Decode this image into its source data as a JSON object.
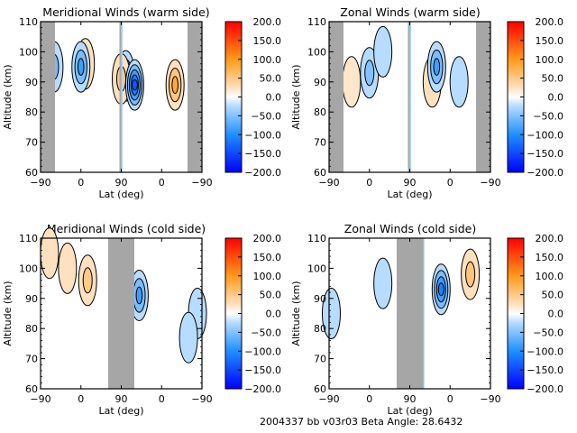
{
  "footer": "2004337 bb v03r03   Beta Angle: 28.6432",
  "chart_data": [
    {
      "type": "heatmap",
      "title": "Meridional Winds (warm side)",
      "xlabel": "Lat (deg)",
      "ylabel": "Altitude (km)",
      "xticks": [
        "-90",
        "0",
        "90",
        "0",
        "-90"
      ],
      "yticks": [
        "60",
        "70",
        "80",
        "90",
        "100",
        "110"
      ],
      "ylim": [
        60,
        110
      ],
      "colorbar": {
        "ticks": [
          "200.0",
          "150.0",
          "100.0",
          "50.0",
          "0.0",
          "-50.0",
          "-100.0",
          "-150.0",
          "-200.0"
        ],
        "range": [
          -200,
          200
        ]
      },
      "masked_lat_ranges": [
        [
          -90,
          -65
        ],
        [
          88,
          90
        ],
        [
          -65,
          -90
        ]
      ],
      "features": [
        {
          "type": "neg",
          "lat": -60,
          "alt": 95,
          "value": -60
        },
        {
          "type": "pos",
          "lat": -30,
          "alt": 89,
          "value": 100
        },
        {
          "type": "pos",
          "lat": 10,
          "alt": 96,
          "value": 30
        },
        {
          "type": "neg",
          "lat": 80,
          "alt": 92,
          "value": -80
        },
        {
          "type": "pos",
          "lat": 90,
          "alt": 91,
          "value": 50
        },
        {
          "type": "neg",
          "lat": 60,
          "alt": 89,
          "value": -140
        },
        {
          "type": "neg",
          "lat": 0,
          "alt": 95,
          "value": -100
        }
      ]
    },
    {
      "type": "heatmap",
      "title": "Zonal Winds (warm side)",
      "xlabel": "Lat (deg)",
      "ylabel": "Altitude (km)",
      "xticks": [
        "-90",
        "0",
        "90",
        "0",
        "-90"
      ],
      "yticks": [
        "60",
        "70",
        "80",
        "90",
        "100",
        "110"
      ],
      "ylim": [
        60,
        110
      ],
      "colorbar": {
        "ticks": [
          "200.0",
          "150.0",
          "100.0",
          "50.0",
          "0.0",
          "-50.0",
          "-100.0",
          "-150.0",
          "-200.0"
        ],
        "range": [
          -200,
          200
        ]
      },
      "masked_lat_ranges": [
        [
          -90,
          -65
        ],
        [
          88,
          90
        ],
        [
          -65,
          -90
        ]
      ],
      "features": [
        {
          "type": "pos",
          "lat": -40,
          "alt": 90,
          "value": 20
        },
        {
          "type": "neg",
          "lat": -20,
          "alt": 90,
          "value": -40
        },
        {
          "type": "neg",
          "lat": 0,
          "alt": 93,
          "value": -50
        },
        {
          "type": "pos",
          "lat": 40,
          "alt": 90,
          "value": 40
        },
        {
          "type": "neg",
          "lat": 30,
          "alt": 100,
          "value": -30
        },
        {
          "type": "neg",
          "lat": 30,
          "alt": 95,
          "value": -100
        }
      ]
    },
    {
      "type": "heatmap",
      "title": "Meridional Winds (cold side)",
      "xlabel": "Lat (deg)",
      "ylabel": "Altitude (km)",
      "xticks": [
        "-90",
        "0",
        "90",
        "0",
        "-90"
      ],
      "yticks": [
        "60",
        "70",
        "80",
        "90",
        "100",
        "110"
      ],
      "ylim": [
        60,
        110
      ],
      "colorbar": {
        "ticks": [
          "200.0",
          "150.0",
          "100.0",
          "50.0",
          "0.0",
          "-50.0",
          "-100.0",
          "-150.0",
          "-200.0"
        ],
        "range": [
          -200,
          200
        ]
      },
      "masked_lat_ranges": [
        [
          60,
          120
        ]
      ],
      "features": [
        {
          "type": "pos",
          "lat": -70,
          "alt": 105,
          "value": 40
        },
        {
          "type": "neg",
          "lat": -80,
          "alt": 85,
          "value": -30
        },
        {
          "type": "pos",
          "lat": 15,
          "alt": 96,
          "value": 50
        },
        {
          "type": "neg",
          "lat": 50,
          "alt": 91,
          "value": -100
        },
        {
          "type": "pos",
          "lat": -30,
          "alt": 100,
          "value": 30
        },
        {
          "type": "neg",
          "lat": -60,
          "alt": 77,
          "value": -30
        }
      ]
    },
    {
      "type": "heatmap",
      "title": "Zonal Winds (cold side)",
      "xlabel": "Lat (deg)",
      "ylabel": "Altitude (km)",
      "xticks": [
        "-90",
        "0",
        "90",
        "0",
        "-90"
      ],
      "yticks": [
        "60",
        "70",
        "80",
        "90",
        "100",
        "110"
      ],
      "ylim": [
        60,
        110
      ],
      "colorbar": {
        "ticks": [
          "200.0",
          "150.0",
          "100.0",
          "50.0",
          "0.0",
          "-50.0",
          "-100.0",
          "-150.0",
          "-200.0"
        ],
        "range": [
          -200,
          200
        ]
      },
      "masked_lat_ranges": [
        [
          60,
          120
        ]
      ],
      "features": [
        {
          "type": "neg",
          "lat": -85,
          "alt": 85,
          "value": -30
        },
        {
          "type": "neg",
          "lat": 20,
          "alt": 93,
          "value": -110
        },
        {
          "type": "neg",
          "lat": 30,
          "alt": 95,
          "value": -40
        },
        {
          "type": "pos",
          "lat": -45,
          "alt": 98,
          "value": 70
        }
      ]
    }
  ]
}
